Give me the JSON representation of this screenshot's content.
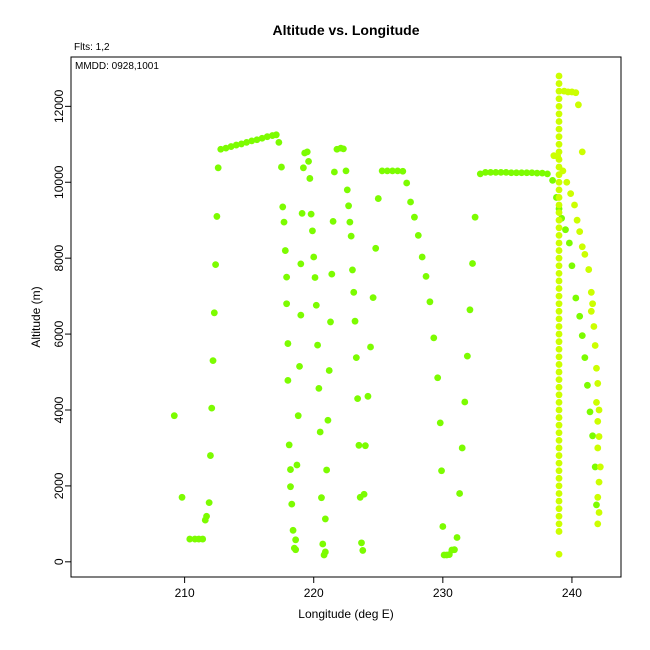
{
  "chart_data": {
    "type": "scatter",
    "title": "Altitude vs. Longitude",
    "annotations": [
      "Flts: 1,2",
      "MMDD: 0928,1001"
    ],
    "xlabel": "Longitude (deg E)",
    "ylabel": "Altitude (m)",
    "xlim": [
      201.2,
      243.8
    ],
    "ylim": [
      -400,
      13300
    ],
    "xticks": [
      210,
      220,
      230,
      240
    ],
    "yticks": [
      0,
      2000,
      4000,
      6000,
      8000,
      10000,
      12000
    ],
    "grid": false,
    "series": [
      {
        "color": "#7cfc00",
        "points": [
          [
            209.2,
            3850
          ],
          [
            209.8,
            1700
          ],
          [
            210.4,
            600
          ],
          [
            210.8,
            600
          ],
          [
            211.1,
            600
          ],
          [
            211.4,
            600
          ],
          [
            211.6,
            1100
          ],
          [
            211.7,
            1200
          ],
          [
            211.9,
            1560
          ],
          [
            212.0,
            2800
          ],
          [
            212.1,
            4050
          ],
          [
            212.2,
            5300
          ],
          [
            212.3,
            6560
          ],
          [
            212.4,
            7830
          ],
          [
            212.5,
            9100
          ],
          [
            212.6,
            10380
          ],
          [
            212.8,
            10870
          ],
          [
            213.2,
            10900
          ],
          [
            213.6,
            10940
          ],
          [
            214.0,
            10980
          ],
          [
            214.4,
            11010
          ],
          [
            214.8,
            11050
          ],
          [
            215.2,
            11090
          ],
          [
            215.6,
            11120
          ],
          [
            216.0,
            11160
          ],
          [
            216.4,
            11200
          ],
          [
            216.8,
            11230
          ],
          [
            217.1,
            11250
          ],
          [
            217.3,
            11050
          ],
          [
            217.5,
            10400
          ],
          [
            217.6,
            9350
          ],
          [
            217.7,
            8950
          ],
          [
            217.8,
            8200
          ],
          [
            217.9,
            7500
          ],
          [
            217.9,
            6800
          ],
          [
            218.0,
            5750
          ],
          [
            218.0,
            4780
          ],
          [
            218.1,
            3080
          ],
          [
            218.2,
            2430
          ],
          [
            218.2,
            1980
          ],
          [
            218.3,
            1520
          ],
          [
            218.4,
            830
          ],
          [
            218.5,
            360
          ],
          [
            218.6,
            320
          ],
          [
            218.6,
            580
          ],
          [
            218.7,
            2550
          ],
          [
            218.8,
            3850
          ],
          [
            218.9,
            5150
          ],
          [
            219.0,
            6500
          ],
          [
            219.0,
            7850
          ],
          [
            219.1,
            9180
          ],
          [
            219.2,
            10380
          ],
          [
            219.3,
            10770
          ],
          [
            219.5,
            10800
          ],
          [
            219.6,
            10550
          ],
          [
            219.7,
            10100
          ],
          [
            219.8,
            9160
          ],
          [
            219.9,
            8720
          ],
          [
            220.0,
            8030
          ],
          [
            220.1,
            7490
          ],
          [
            220.2,
            6760
          ],
          [
            220.3,
            5710
          ],
          [
            220.4,
            4570
          ],
          [
            220.5,
            3420
          ],
          [
            220.6,
            1690
          ],
          [
            220.7,
            470
          ],
          [
            220.8,
            180
          ],
          [
            220.9,
            260
          ],
          [
            220.9,
            1130
          ],
          [
            221.0,
            2420
          ],
          [
            221.1,
            3730
          ],
          [
            221.2,
            5040
          ],
          [
            221.3,
            6320
          ],
          [
            221.4,
            7580
          ],
          [
            221.5,
            8970
          ],
          [
            221.6,
            10270
          ],
          [
            221.8,
            10870
          ],
          [
            222.1,
            10900
          ],
          [
            222.3,
            10880
          ],
          [
            222.5,
            10300
          ],
          [
            222.6,
            9800
          ],
          [
            222.7,
            9380
          ],
          [
            222.8,
            8950
          ],
          [
            222.9,
            8580
          ],
          [
            223.0,
            7690
          ],
          [
            223.1,
            7100
          ],
          [
            223.2,
            6340
          ],
          [
            223.3,
            5380
          ],
          [
            223.4,
            4300
          ],
          [
            223.5,
            3070
          ],
          [
            223.6,
            1700
          ],
          [
            223.7,
            500
          ],
          [
            223.8,
            300
          ],
          [
            223.9,
            1780
          ],
          [
            224.0,
            3060
          ],
          [
            224.2,
            4360
          ],
          [
            224.4,
            5660
          ],
          [
            224.6,
            6960
          ],
          [
            224.8,
            8260
          ],
          [
            225.0,
            9570
          ],
          [
            225.3,
            10300
          ],
          [
            225.7,
            10300
          ],
          [
            226.1,
            10300
          ],
          [
            226.5,
            10300
          ],
          [
            226.9,
            10290
          ],
          [
            227.2,
            9980
          ],
          [
            227.5,
            9480
          ],
          [
            227.8,
            9080
          ],
          [
            228.1,
            8600
          ],
          [
            228.4,
            8030
          ],
          [
            228.7,
            7520
          ],
          [
            229.0,
            6850
          ],
          [
            229.3,
            5900
          ],
          [
            229.6,
            4850
          ],
          [
            229.8,
            3660
          ],
          [
            229.9,
            2400
          ],
          [
            230.0,
            930
          ],
          [
            230.1,
            180
          ],
          [
            230.3,
            180
          ],
          [
            230.5,
            190
          ],
          [
            230.7,
            310
          ],
          [
            230.9,
            320
          ],
          [
            231.1,
            640
          ],
          [
            231.3,
            1800
          ],
          [
            231.5,
            3000
          ],
          [
            231.7,
            4210
          ],
          [
            231.9,
            5420
          ],
          [
            232.1,
            6640
          ],
          [
            232.3,
            7860
          ],
          [
            232.5,
            9080
          ],
          [
            232.9,
            10220
          ],
          [
            233.3,
            10260
          ],
          [
            233.7,
            10260
          ],
          [
            234.1,
            10260
          ],
          [
            234.5,
            10260
          ],
          [
            234.9,
            10260
          ],
          [
            235.3,
            10250
          ],
          [
            235.7,
            10250
          ],
          [
            236.1,
            10250
          ],
          [
            236.5,
            10250
          ],
          [
            236.9,
            10250
          ],
          [
            237.3,
            10240
          ],
          [
            237.7,
            10240
          ],
          [
            238.1,
            10220
          ],
          [
            238.5,
            10050
          ],
          [
            238.8,
            9600
          ],
          [
            239.0,
            9300
          ],
          [
            239.2,
            9050
          ],
          [
            239.5,
            8750
          ],
          [
            239.8,
            8400
          ],
          [
            240.0,
            7800
          ],
          [
            240.3,
            6950
          ],
          [
            240.6,
            6470
          ],
          [
            240.8,
            5960
          ],
          [
            241.0,
            5380
          ],
          [
            241.2,
            4650
          ],
          [
            241.4,
            3950
          ],
          [
            241.6,
            3320
          ],
          [
            241.8,
            2500
          ],
          [
            241.9,
            1500
          ]
        ]
      },
      {
        "color": "#ccff00",
        "points": [
          [
            238.6,
            10700
          ],
          [
            238.9,
            10680
          ],
          [
            239.0,
            12800
          ],
          [
            239.0,
            12600
          ],
          [
            239.0,
            12400
          ],
          [
            239.0,
            12200
          ],
          [
            239.0,
            12000
          ],
          [
            239.0,
            11800
          ],
          [
            239.0,
            11600
          ],
          [
            239.0,
            11400
          ],
          [
            239.0,
            11200
          ],
          [
            239.0,
            11000
          ],
          [
            239.0,
            10800
          ],
          [
            239.0,
            10600
          ],
          [
            239.0,
            10400
          ],
          [
            239.0,
            10200
          ],
          [
            239.0,
            10000
          ],
          [
            239.0,
            9800
          ],
          [
            239.0,
            9600
          ],
          [
            239.0,
            9400
          ],
          [
            239.0,
            9200
          ],
          [
            239.0,
            9000
          ],
          [
            239.0,
            8800
          ],
          [
            239.0,
            8600
          ],
          [
            239.0,
            8400
          ],
          [
            239.0,
            8200
          ],
          [
            239.0,
            8000
          ],
          [
            239.0,
            7800
          ],
          [
            239.0,
            7600
          ],
          [
            239.0,
            7400
          ],
          [
            239.0,
            7200
          ],
          [
            239.0,
            7000
          ],
          [
            239.0,
            6800
          ],
          [
            239.0,
            6600
          ],
          [
            239.0,
            6400
          ],
          [
            239.0,
            6200
          ],
          [
            239.0,
            6000
          ],
          [
            239.0,
            5800
          ],
          [
            239.0,
            5600
          ],
          [
            239.0,
            5400
          ],
          [
            239.0,
            5200
          ],
          [
            239.0,
            5000
          ],
          [
            239.0,
            4800
          ],
          [
            239.0,
            4600
          ],
          [
            239.0,
            4400
          ],
          [
            239.0,
            4200
          ],
          [
            239.0,
            4000
          ],
          [
            239.0,
            3800
          ],
          [
            239.0,
            3600
          ],
          [
            239.0,
            3400
          ],
          [
            239.0,
            3200
          ],
          [
            239.0,
            3000
          ],
          [
            239.0,
            2800
          ],
          [
            239.0,
            2600
          ],
          [
            239.0,
            2400
          ],
          [
            239.0,
            2200
          ],
          [
            239.0,
            2000
          ],
          [
            239.0,
            1800
          ],
          [
            239.0,
            1600
          ],
          [
            239.0,
            1400
          ],
          [
            239.0,
            1200
          ],
          [
            239.0,
            1000
          ],
          [
            239.0,
            800
          ],
          [
            239.0,
            200
          ],
          [
            239.4,
            12400
          ],
          [
            239.7,
            12380
          ],
          [
            240.0,
            12380
          ],
          [
            240.3,
            12360
          ],
          [
            240.5,
            12040
          ],
          [
            240.8,
            10800
          ],
          [
            239.3,
            10300
          ],
          [
            239.6,
            10000
          ],
          [
            239.9,
            9700
          ],
          [
            240.2,
            9400
          ],
          [
            240.4,
            9000
          ],
          [
            240.6,
            8700
          ],
          [
            240.8,
            8300
          ],
          [
            241.0,
            8100
          ],
          [
            241.3,
            7700
          ],
          [
            241.5,
            7100
          ],
          [
            241.6,
            6800
          ],
          [
            241.5,
            6600
          ],
          [
            241.7,
            6200
          ],
          [
            241.8,
            5700
          ],
          [
            241.9,
            5100
          ],
          [
            242.0,
            4700
          ],
          [
            241.9,
            4200
          ],
          [
            242.1,
            4000
          ],
          [
            242.0,
            3700
          ],
          [
            242.1,
            3300
          ],
          [
            242.0,
            3000
          ],
          [
            242.2,
            2500
          ],
          [
            242.1,
            2100
          ],
          [
            242.0,
            1700
          ],
          [
            242.1,
            1300
          ],
          [
            242.0,
            1000
          ]
        ]
      }
    ]
  }
}
